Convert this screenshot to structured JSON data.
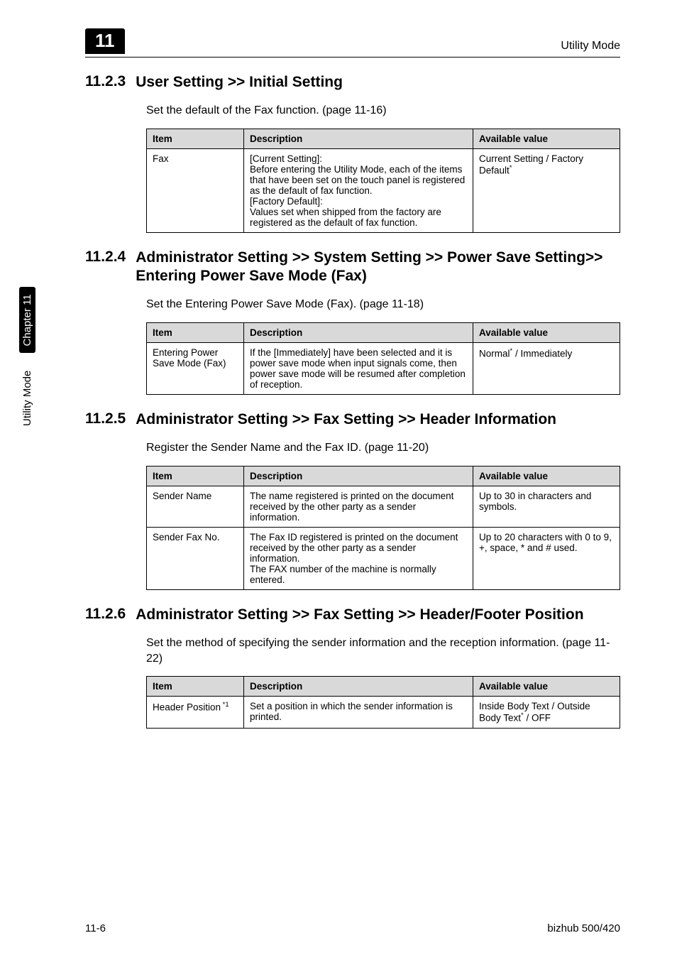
{
  "header": {
    "chapter_badge": "11",
    "right": "Utility Mode"
  },
  "side_tab": {
    "label": "Utility Mode",
    "chapter": "Chapter 11"
  },
  "footer": {
    "page": "11-6",
    "product": "bizhub 500/420"
  },
  "sections": [
    {
      "num": "11.2.3",
      "title": "User Setting >> Initial Setting",
      "intro": "Set the default of the Fax function. (page 11-16)",
      "table": {
        "headers": [
          "Item",
          "Description",
          "Available value"
        ],
        "rows": [
          {
            "item": "Fax",
            "desc": "[Current Setting]:\nBefore entering the Utility Mode, each of the items that have been set on the touch panel is registered as the default of fax function.\n[Factory Default]:\nValues set when shipped from the factory are registered as the default of fax function.",
            "avail": "Current Setting / Factory Default",
            "star_item": false,
            "star_avail": true
          }
        ]
      }
    },
    {
      "num": "11.2.4",
      "title": "Administrator Setting >> System Setting >> Power Save Setting>> Entering Power Save Mode (Fax)",
      "intro": "Set the Entering Power Save Mode (Fax). (page 11-18)",
      "table": {
        "headers": [
          "Item",
          "Description",
          "Available value"
        ],
        "rows": [
          {
            "item": "Entering Power Save Mode (Fax)",
            "desc": "If the [Immediately] have been selected and it is power save mode when input signals come, then power save mode will be resumed after completion of reception.",
            "avail": "Normal",
            "avail_suffix": " / Immediately",
            "star_item": false,
            "star_avail": true
          }
        ]
      }
    },
    {
      "num": "11.2.5",
      "title": "Administrator Setting >> Fax Setting >> Header Information",
      "intro": "Register the Sender Name and the Fax ID. (page 11-20)",
      "table": {
        "headers": [
          "Item",
          "Description",
          "Available value"
        ],
        "rows": [
          {
            "item": "Sender Name",
            "desc": "The name registered is printed on the document received by the other party as a sender information.",
            "avail": "Up to 30 in characters and symbols.",
            "star_item": false,
            "star_avail": false
          },
          {
            "item": "Sender Fax No.",
            "desc": "The Fax ID registered is printed on the document received by the other party as a sender information.\nThe FAX number of the machine is normally entered.",
            "avail": "Up to 20 characters with 0 to 9, +, space, * and # used.",
            "star_item": false,
            "star_avail": false
          }
        ]
      }
    },
    {
      "num": "11.2.6",
      "title": "Administrator Setting >> Fax Setting >> Header/Footer Position",
      "intro": "Set the method of specifying the sender information and the reception information. (page 11-22)",
      "table": {
        "headers": [
          "Item",
          "Description",
          "Available value"
        ],
        "rows": [
          {
            "item": "Header Position",
            "item_sup": " *1",
            "desc": "Set a position in which the sender information is printed.",
            "avail": "Inside Body Text / Outside Body Text",
            "avail_suffix": " / OFF",
            "star_item": false,
            "star_avail": true
          }
        ]
      }
    }
  ]
}
